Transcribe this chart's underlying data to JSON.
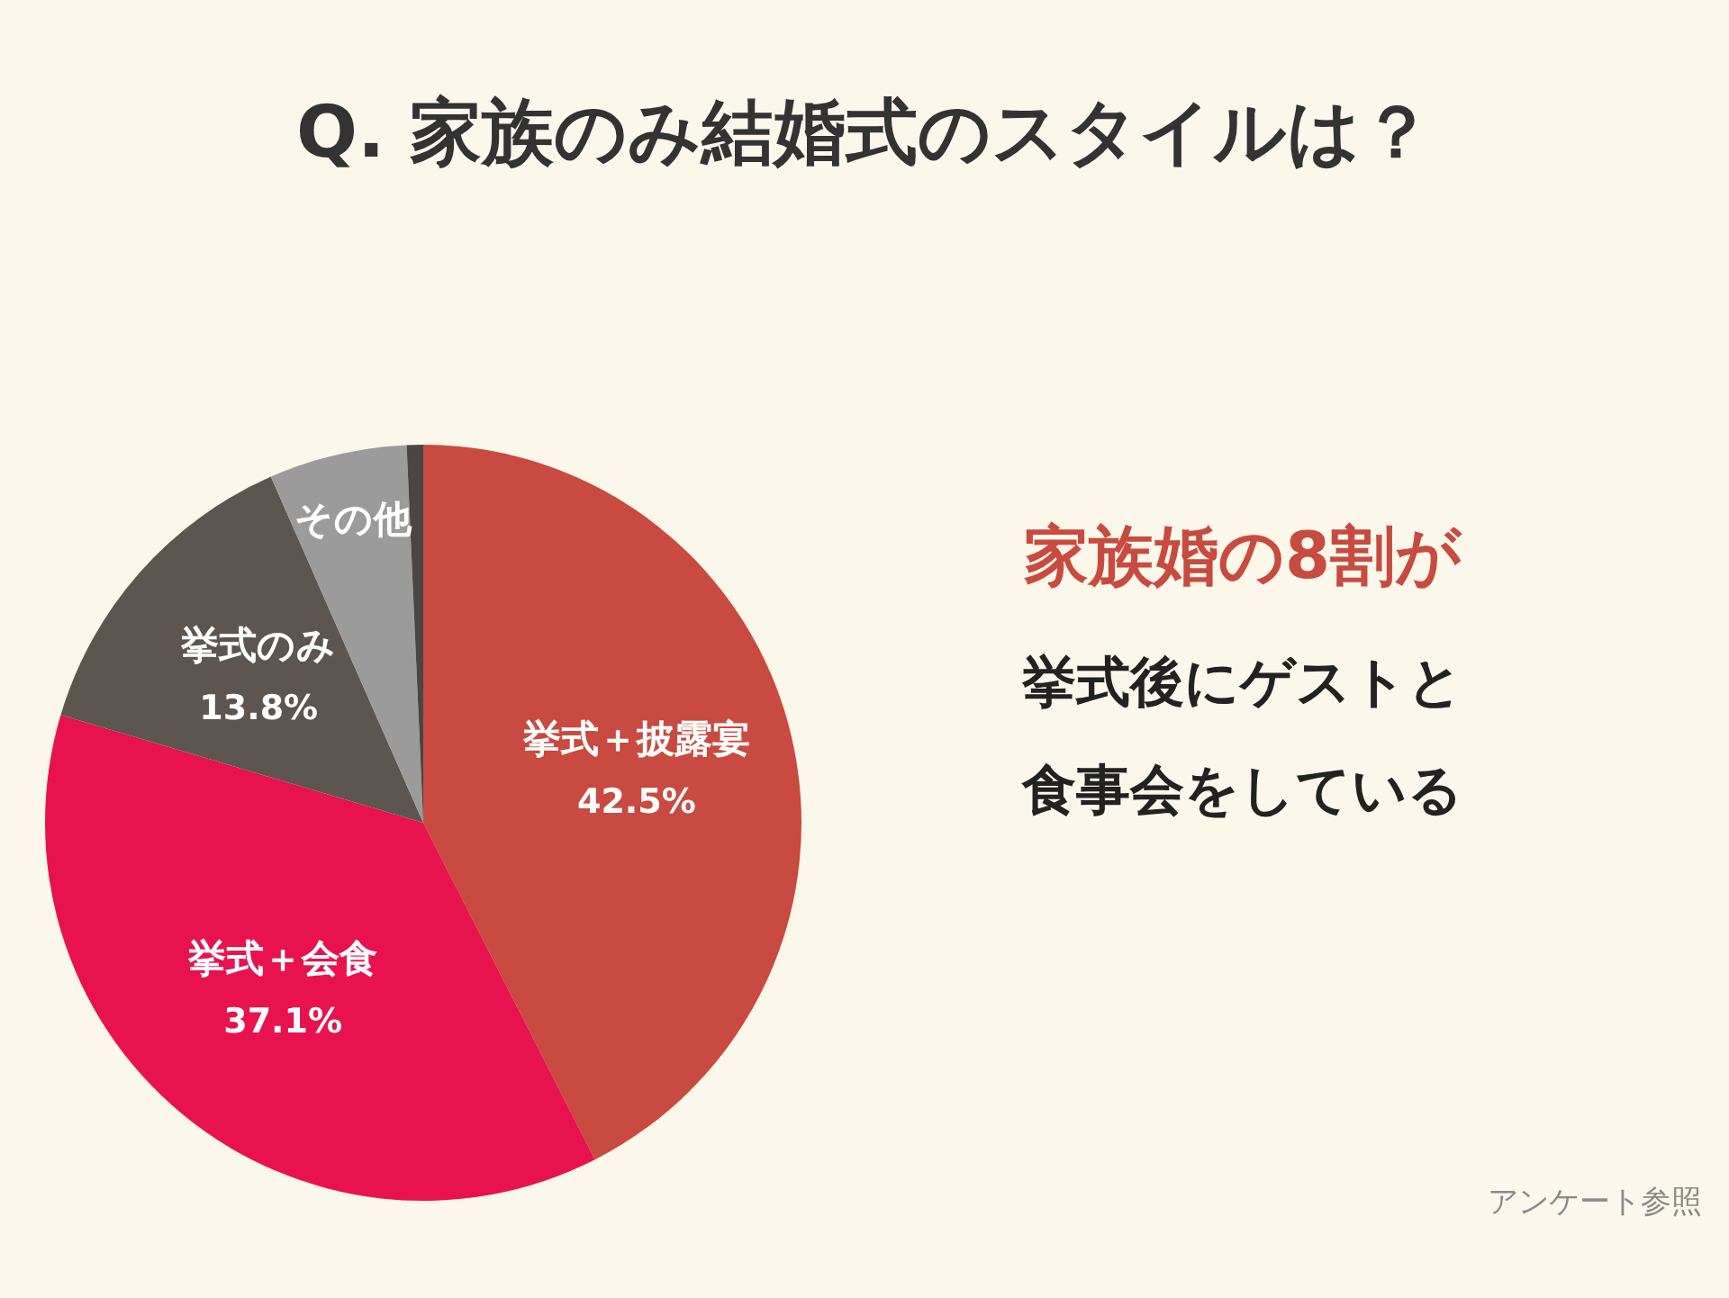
{
  "chart_data": {
    "type": "pie",
    "title": "Q. 家族のみ結婚式のスタイルは？",
    "categories": [
      "挙式＋披露宴",
      "挙式＋会食",
      "挙式のみ",
      "その他",
      null
    ],
    "values": [
      42.5,
      37.1,
      13.8,
      5.9,
      0.7
    ],
    "colors": [
      "#c84a40",
      "#e8124e",
      "#5d5650",
      "#9b9b9b",
      "#4a4644"
    ],
    "value_labels": [
      "42.5%",
      "37.1%",
      "13.8%",
      null,
      null
    ],
    "annotations": [
      "家族婚の8割が",
      "挙式後にゲストと",
      "食事会をしている",
      "アンケート参照"
    ]
  }
}
